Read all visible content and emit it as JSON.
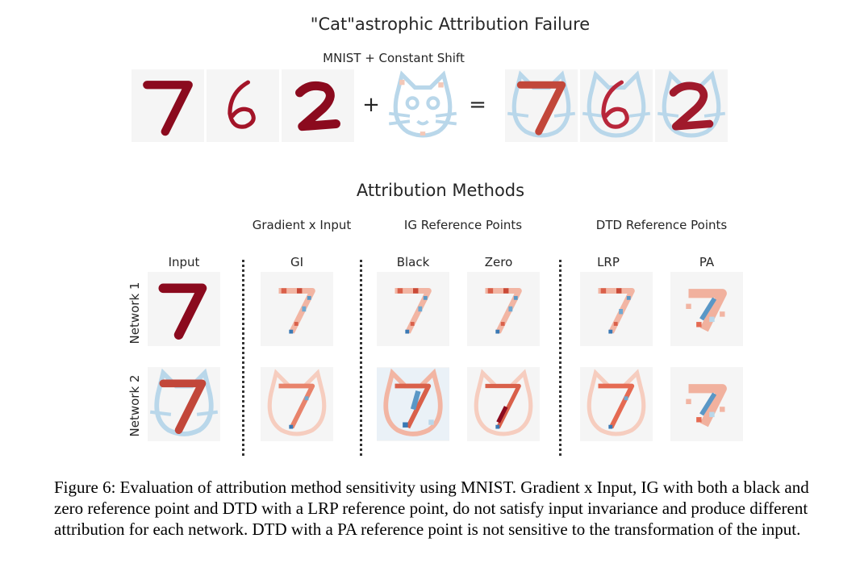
{
  "figure": {
    "main_title": "\"Cat\"astrophic Attribution Failure",
    "top_subtitle": "MNIST + Constant Shift",
    "plus_sign": "+",
    "equals_sign": "=",
    "section_title": "Attribution Methods",
    "group_labels": {
      "gi": "Gradient x Input",
      "ig": "IG Reference Points",
      "dtd": "DTD Reference Points"
    },
    "columns": {
      "input": "Input",
      "gi": "GI",
      "black": "Black",
      "zero": "Zero",
      "lrp": "LRP",
      "pa": "PA"
    },
    "rows": {
      "network1": "Network 1",
      "network2": "Network 2"
    },
    "digits": [
      "7",
      "6",
      "2"
    ],
    "caption": "Figure 6: Evaluation of attribution method sensitivity using MNIST. Gradient x Input, IG with both a black and zero reference point and DTD with a LRP reference point, do not satisfy input invariance and produce different attribution for each network. DTD with a PA reference point is not sensitive to the transformation of the input."
  },
  "colors": {
    "panel_bg": "#f5f5f5",
    "digit_dark_red": "#8b0a1e",
    "cat_light_blue": "#b9d7ea",
    "attr_red": "#e56a52",
    "attr_blue": "#5a97c6"
  }
}
